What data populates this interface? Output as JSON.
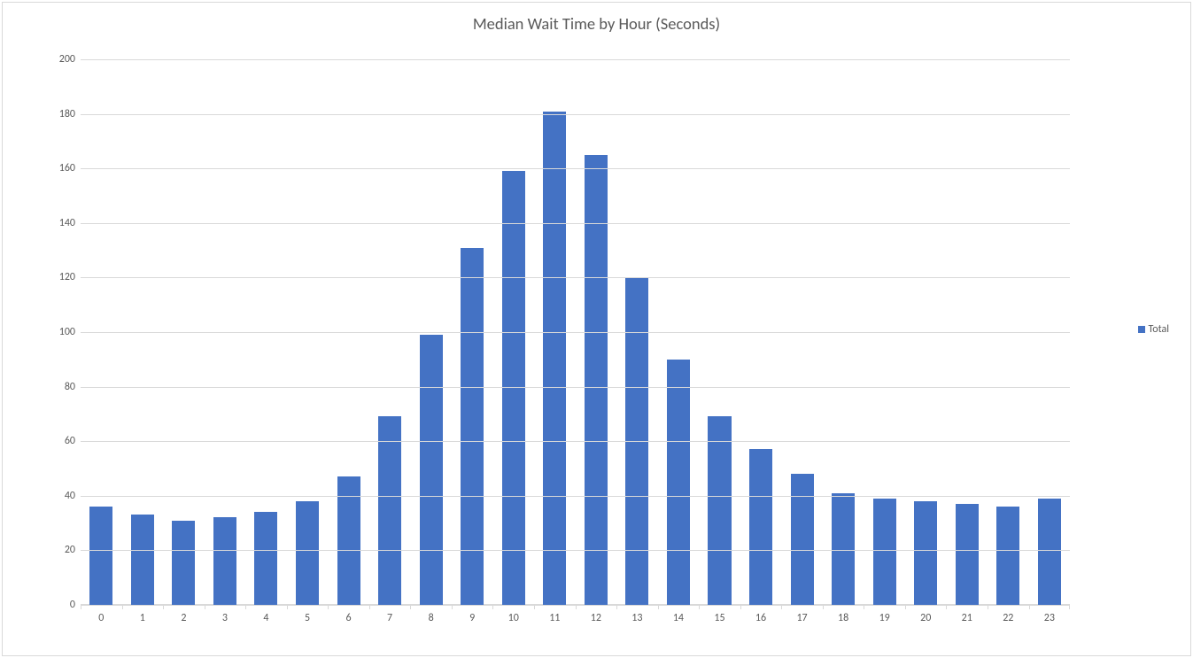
{
  "chart": {
    "type": "bar",
    "title": "Median Wait Time by Hour (Seconds)",
    "title_fontsize": 18.5,
    "title_color": "#595959",
    "categories": [
      "0",
      "1",
      "2",
      "3",
      "4",
      "5",
      "6",
      "7",
      "8",
      "9",
      "10",
      "11",
      "12",
      "13",
      "14",
      "15",
      "16",
      "17",
      "18",
      "19",
      "20",
      "21",
      "22",
      "23"
    ],
    "values": [
      36,
      33,
      31,
      32,
      34,
      38,
      47,
      69,
      99,
      131,
      159,
      181,
      165,
      120,
      90,
      69,
      57,
      48,
      41,
      39,
      38,
      37,
      36,
      39
    ],
    "bar_color": "#4472c4",
    "bar_width": 0.56,
    "ylim": [
      0,
      200
    ],
    "ytick_step": 20,
    "ytick_labels": [
      "0",
      "20",
      "40",
      "60",
      "80",
      "100",
      "120",
      "140",
      "160",
      "180",
      "200"
    ],
    "grid_color": "#d9d9d9",
    "background_color": "#ffffff",
    "border_color": "#d9d9d9",
    "label_fontsize": 12,
    "label_color": "#595959",
    "legend": {
      "label": "Total",
      "swatch_color": "#4472c4",
      "position": "right"
    }
  }
}
